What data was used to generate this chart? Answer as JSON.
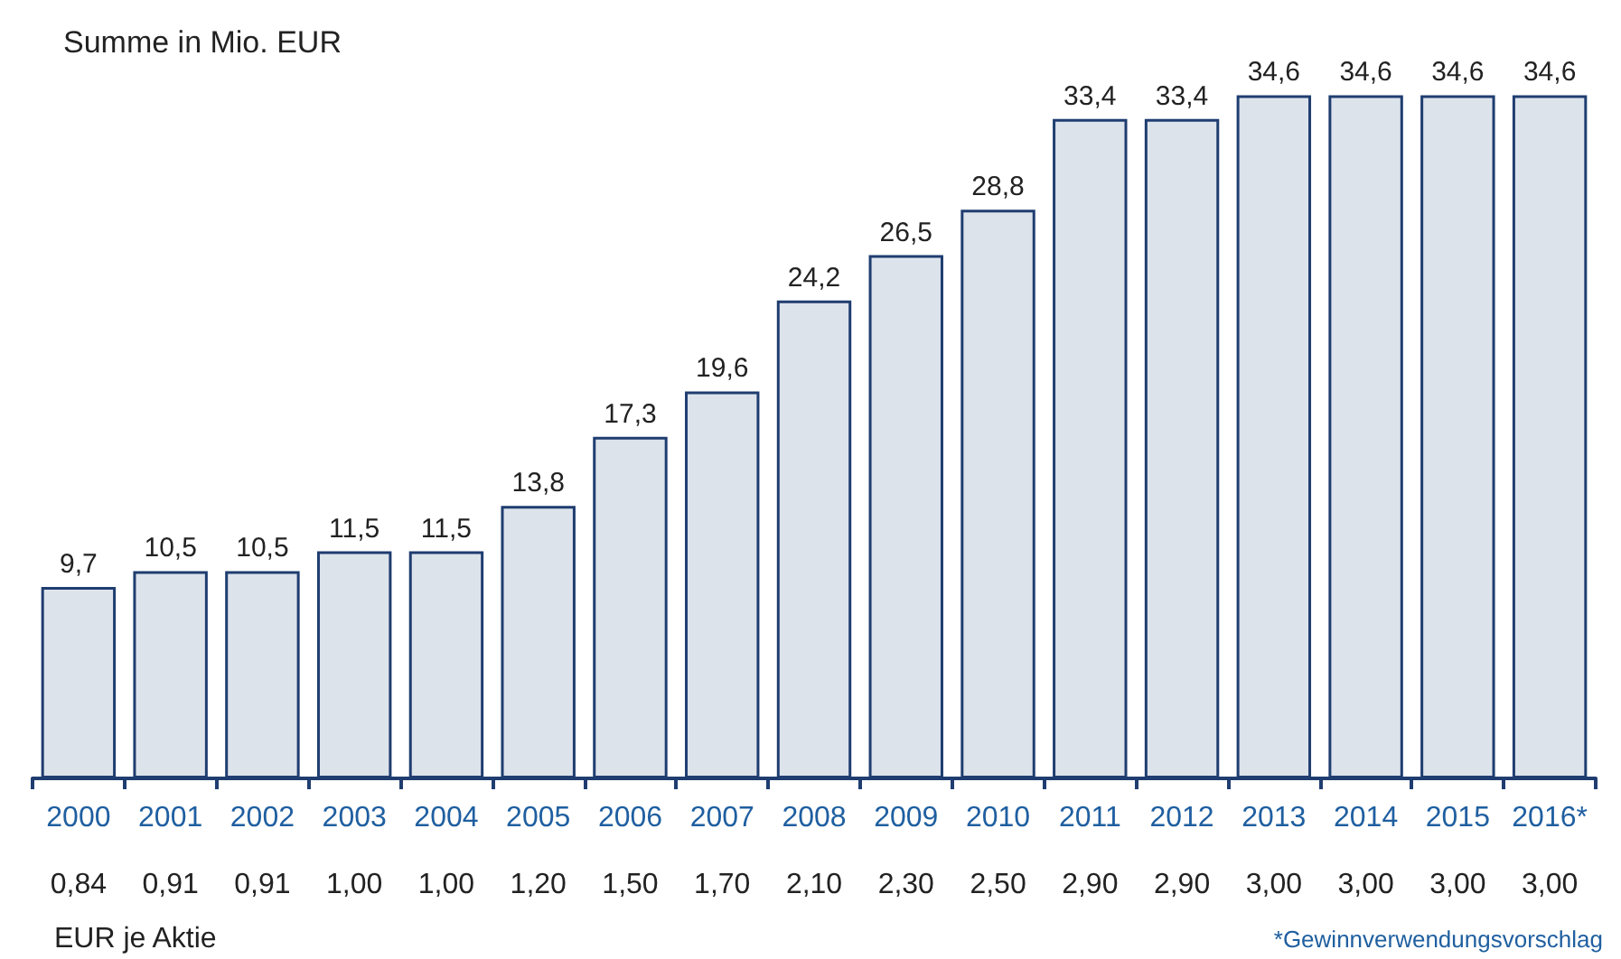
{
  "chart_data": {
    "type": "bar",
    "title": "Summe in Mio. EUR",
    "categories": [
      "2000",
      "2001",
      "2002",
      "2003",
      "2004",
      "2005",
      "2006",
      "2007",
      "2008",
      "2009",
      "2010",
      "2011",
      "2012",
      "2013",
      "2014",
      "2015",
      "2016*"
    ],
    "values": [
      9.7,
      10.5,
      10.5,
      11.5,
      11.5,
      13.8,
      17.3,
      19.6,
      24.2,
      26.5,
      28.8,
      33.4,
      33.4,
      34.6,
      34.6,
      34.6,
      34.6
    ],
    "value_labels": [
      "9,7",
      "10,5",
      "10,5",
      "11,5",
      "11,5",
      "13,8",
      "17,3",
      "19,6",
      "24,2",
      "26,5",
      "28,8",
      "33,4",
      "33,4",
      "34,6",
      "34,6",
      "34,6",
      "34,6"
    ],
    "color": "#dce3eb",
    "annotations": [
      "0,84",
      "0,91",
      "0,91",
      "1,00",
      "1,00",
      "1,20",
      "1,50",
      "1,70",
      "2,10",
      "2,30",
      "2,50",
      "2,90",
      "2,90",
      "3,00",
      "3,00",
      "3,00",
      "3,00",
      "EUR je Aktie",
      "*Gewinnverwendungsvorschlag"
    ],
    "grid": false
  }
}
